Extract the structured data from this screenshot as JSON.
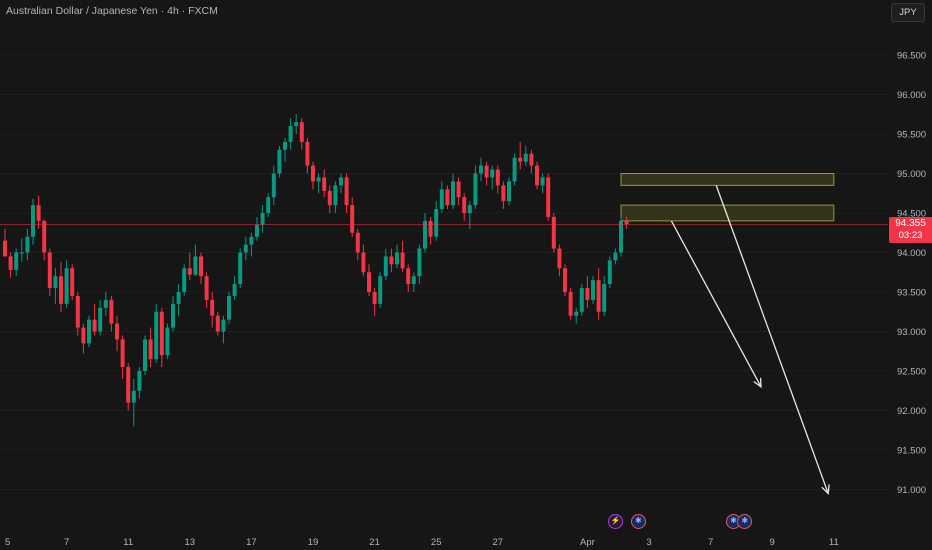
{
  "header": {
    "symbol_title": "Australian Dollar / Japanese Yen · 4h · FXCM",
    "currency_button": "JPY"
  },
  "price_tag": {
    "price": "94.355",
    "countdown": "03:23"
  },
  "colors": {
    "background": "#161616",
    "up_candle": "#089981",
    "down_candle": "#f23645",
    "axis_text": "#b2b5be",
    "zone_fill": "#6b6b1f",
    "zone_border": "#9a9a35",
    "arrow": "#e8e8e8",
    "current_price_line": "#f23645"
  },
  "chart_data": {
    "type": "candlestick",
    "title": "Australian Dollar / Japanese Yen · 4h · FXCM",
    "y_axis": {
      "ticks": [
        "96.500",
        "96.000",
        "95.500",
        "95.000",
        "94.500",
        "94.000",
        "93.500",
        "93.000",
        "92.500",
        "92.000",
        "91.500",
        "91.000"
      ],
      "range": [
        90.5,
        97.0
      ]
    },
    "x_axis": {
      "labels": [
        {
          "text": "5",
          "bar": 0
        },
        {
          "text": "7",
          "bar": 11
        },
        {
          "text": "11",
          "bar": 22
        },
        {
          "text": "13",
          "bar": 33
        },
        {
          "text": "17",
          "bar": 44
        },
        {
          "text": "19",
          "bar": 55
        },
        {
          "text": "21",
          "bar": 66
        },
        {
          "text": "25",
          "bar": 77
        },
        {
          "text": "27",
          "bar": 88
        },
        {
          "text": "Apr",
          "bar": 104
        },
        {
          "text": "3",
          "bar": 115
        },
        {
          "text": "7",
          "bar": 126
        },
        {
          "text": "9",
          "bar": 137
        },
        {
          "text": "11",
          "bar": 148
        }
      ],
      "bar_range": [
        0,
        149
      ]
    },
    "last_price": 94.355,
    "ohlc": [
      [
        94.15,
        94.3,
        93.95,
        93.95
      ],
      [
        93.95,
        94.0,
        93.68,
        93.78
      ],
      [
        93.78,
        94.05,
        93.7,
        94.0
      ],
      [
        94.0,
        94.18,
        93.88,
        94.0
      ],
      [
        94.0,
        94.3,
        93.9,
        94.2
      ],
      [
        94.2,
        94.68,
        94.1,
        94.6
      ],
      [
        94.6,
        94.72,
        94.3,
        94.4
      ],
      [
        94.4,
        94.42,
        93.9,
        94.0
      ],
      [
        94.0,
        94.05,
        93.45,
        93.55
      ],
      [
        93.55,
        93.8,
        93.35,
        93.7
      ],
      [
        93.7,
        93.88,
        93.25,
        93.35
      ],
      [
        93.35,
        93.9,
        93.3,
        93.8
      ],
      [
        93.8,
        93.85,
        93.4,
        93.45
      ],
      [
        93.45,
        93.5,
        92.95,
        93.05
      ],
      [
        93.05,
        93.1,
        92.72,
        92.85
      ],
      [
        92.85,
        93.2,
        92.8,
        93.15
      ],
      [
        93.15,
        93.35,
        92.95,
        93.0
      ],
      [
        93.0,
        93.4,
        92.95,
        93.3
      ],
      [
        93.3,
        93.5,
        93.2,
        93.4
      ],
      [
        93.4,
        93.45,
        93.0,
        93.1
      ],
      [
        93.1,
        93.2,
        92.75,
        92.9
      ],
      [
        92.9,
        92.95,
        92.4,
        92.55
      ],
      [
        92.55,
        92.6,
        92.0,
        92.1
      ],
      [
        92.1,
        92.4,
        91.8,
        92.25
      ],
      [
        92.25,
        92.55,
        92.15,
        92.5
      ],
      [
        92.5,
        92.95,
        92.45,
        92.9
      ],
      [
        92.9,
        93.05,
        92.55,
        92.65
      ],
      [
        92.65,
        93.35,
        92.6,
        93.25
      ],
      [
        93.25,
        93.3,
        92.55,
        92.7
      ],
      [
        92.7,
        93.1,
        92.65,
        93.05
      ],
      [
        93.05,
        93.45,
        93.0,
        93.35
      ],
      [
        93.35,
        93.6,
        93.2,
        93.5
      ],
      [
        93.5,
        93.85,
        93.45,
        93.8
      ],
      [
        93.8,
        94.0,
        93.65,
        93.72
      ],
      [
        93.72,
        94.1,
        93.7,
        93.95
      ],
      [
        93.95,
        94.0,
        93.6,
        93.7
      ],
      [
        93.7,
        93.75,
        93.3,
        93.4
      ],
      [
        93.4,
        93.5,
        93.05,
        93.2
      ],
      [
        93.2,
        93.25,
        92.95,
        93.0
      ],
      [
        93.0,
        93.2,
        92.85,
        93.15
      ],
      [
        93.15,
        93.5,
        93.1,
        93.45
      ],
      [
        93.45,
        93.7,
        93.4,
        93.6
      ],
      [
        93.6,
        94.05,
        93.55,
        94.0
      ],
      [
        94.0,
        94.2,
        93.9,
        94.1
      ],
      [
        94.1,
        94.25,
        93.95,
        94.2
      ],
      [
        94.2,
        94.45,
        94.15,
        94.35
      ],
      [
        94.35,
        94.6,
        94.25,
        94.5
      ],
      [
        94.5,
        94.75,
        94.45,
        94.7
      ],
      [
        94.7,
        95.1,
        94.6,
        95.0
      ],
      [
        95.0,
        95.35,
        94.95,
        95.3
      ],
      [
        95.3,
        95.45,
        95.15,
        95.4
      ],
      [
        95.4,
        95.7,
        95.3,
        95.6
      ],
      [
        95.6,
        95.75,
        95.5,
        95.65
      ],
      [
        95.65,
        95.7,
        95.3,
        95.4
      ],
      [
        95.4,
        95.45,
        95.0,
        95.1
      ],
      [
        95.1,
        95.15,
        94.8,
        94.9
      ],
      [
        94.9,
        95.0,
        94.75,
        94.95
      ],
      [
        94.95,
        95.05,
        94.7,
        94.78
      ],
      [
        94.78,
        94.85,
        94.5,
        94.6
      ],
      [
        94.6,
        94.9,
        94.5,
        94.85
      ],
      [
        94.85,
        95.0,
        94.75,
        94.95
      ],
      [
        94.95,
        95.0,
        94.5,
        94.6
      ],
      [
        94.6,
        94.7,
        94.2,
        94.25
      ],
      [
        94.25,
        94.3,
        93.9,
        94.0
      ],
      [
        94.0,
        94.1,
        93.7,
        93.75
      ],
      [
        93.75,
        93.85,
        93.45,
        93.5
      ],
      [
        93.5,
        93.55,
        93.2,
        93.35
      ],
      [
        93.35,
        93.75,
        93.3,
        93.7
      ],
      [
        93.7,
        94.05,
        93.65,
        93.95
      ],
      [
        93.95,
        94.05,
        93.75,
        93.85
      ],
      [
        93.85,
        94.1,
        93.8,
        94.0
      ],
      [
        94.0,
        94.15,
        93.75,
        93.8
      ],
      [
        93.8,
        93.85,
        93.5,
        93.6
      ],
      [
        93.6,
        93.75,
        93.5,
        93.7
      ],
      [
        93.7,
        94.1,
        93.6,
        94.05
      ],
      [
        94.05,
        94.5,
        94.0,
        94.4
      ],
      [
        94.4,
        94.45,
        94.1,
        94.2
      ],
      [
        94.2,
        94.65,
        94.15,
        94.55
      ],
      [
        94.55,
        94.9,
        94.5,
        94.8
      ],
      [
        94.8,
        94.85,
        94.55,
        94.6
      ],
      [
        94.6,
        95.0,
        94.55,
        94.9
      ],
      [
        94.9,
        94.95,
        94.6,
        94.7
      ],
      [
        94.7,
        94.75,
        94.4,
        94.5
      ],
      [
        94.5,
        94.65,
        94.3,
        94.6
      ],
      [
        94.6,
        95.1,
        94.55,
        95.0
      ],
      [
        95.0,
        95.2,
        94.9,
        95.1
      ],
      [
        95.1,
        95.15,
        94.85,
        94.95
      ],
      [
        94.95,
        95.1,
        94.8,
        95.05
      ],
      [
        95.05,
        95.1,
        94.75,
        94.85
      ],
      [
        94.85,
        94.9,
        94.55,
        94.65
      ],
      [
        94.65,
        94.95,
        94.6,
        94.9
      ],
      [
        94.9,
        95.25,
        94.85,
        95.2
      ],
      [
        95.2,
        95.4,
        95.05,
        95.15
      ],
      [
        95.15,
        95.35,
        95.1,
        95.25
      ],
      [
        95.25,
        95.3,
        95.0,
        95.1
      ],
      [
        95.1,
        95.15,
        94.8,
        94.85
      ],
      [
        94.85,
        95.0,
        94.75,
        94.95
      ],
      [
        94.95,
        95.0,
        94.4,
        94.45
      ],
      [
        94.45,
        94.5,
        94.0,
        94.05
      ],
      [
        94.05,
        94.1,
        93.7,
        93.8
      ],
      [
        93.8,
        93.85,
        93.45,
        93.5
      ],
      [
        93.5,
        93.55,
        93.15,
        93.2
      ],
      [
        93.2,
        93.3,
        93.1,
        93.25
      ],
      [
        93.25,
        93.6,
        93.2,
        93.55
      ],
      [
        93.55,
        93.7,
        93.3,
        93.4
      ],
      [
        93.4,
        93.7,
        93.35,
        93.65
      ],
      [
        93.65,
        93.8,
        93.15,
        93.25
      ],
      [
        93.25,
        93.7,
        93.2,
        93.6
      ],
      [
        93.6,
        93.95,
        93.55,
        93.9
      ],
      [
        93.9,
        94.05,
        93.85,
        94.0
      ],
      [
        94.0,
        94.45,
        93.95,
        94.4
      ],
      [
        94.4,
        94.45,
        94.3,
        94.355
      ]
    ],
    "zones": [
      {
        "from_bar": 110,
        "to_bar": 148,
        "top": 95.0,
        "bottom": 94.85
      },
      {
        "from_bar": 110,
        "to_bar": 148,
        "top": 94.6,
        "bottom": 94.4
      }
    ],
    "arrows": [
      {
        "from_bar": 119,
        "from_price": 94.4,
        "to_bar": 135,
        "to_price": 92.3
      },
      {
        "from_bar": 127,
        "from_price": 94.85,
        "to_bar": 147,
        "to_price": 90.95
      }
    ]
  },
  "events": [
    {
      "icon": "lightning-icon",
      "glyph": "⚡",
      "bar": 109
    },
    {
      "icon": "flag-australia-icon",
      "glyph": "✱",
      "bar": 113
    },
    {
      "icon": "flag-australia-icon",
      "glyph": "✱",
      "bar": 130
    },
    {
      "icon": "flag-australia-icon",
      "glyph": "✱",
      "bar": 132
    }
  ]
}
